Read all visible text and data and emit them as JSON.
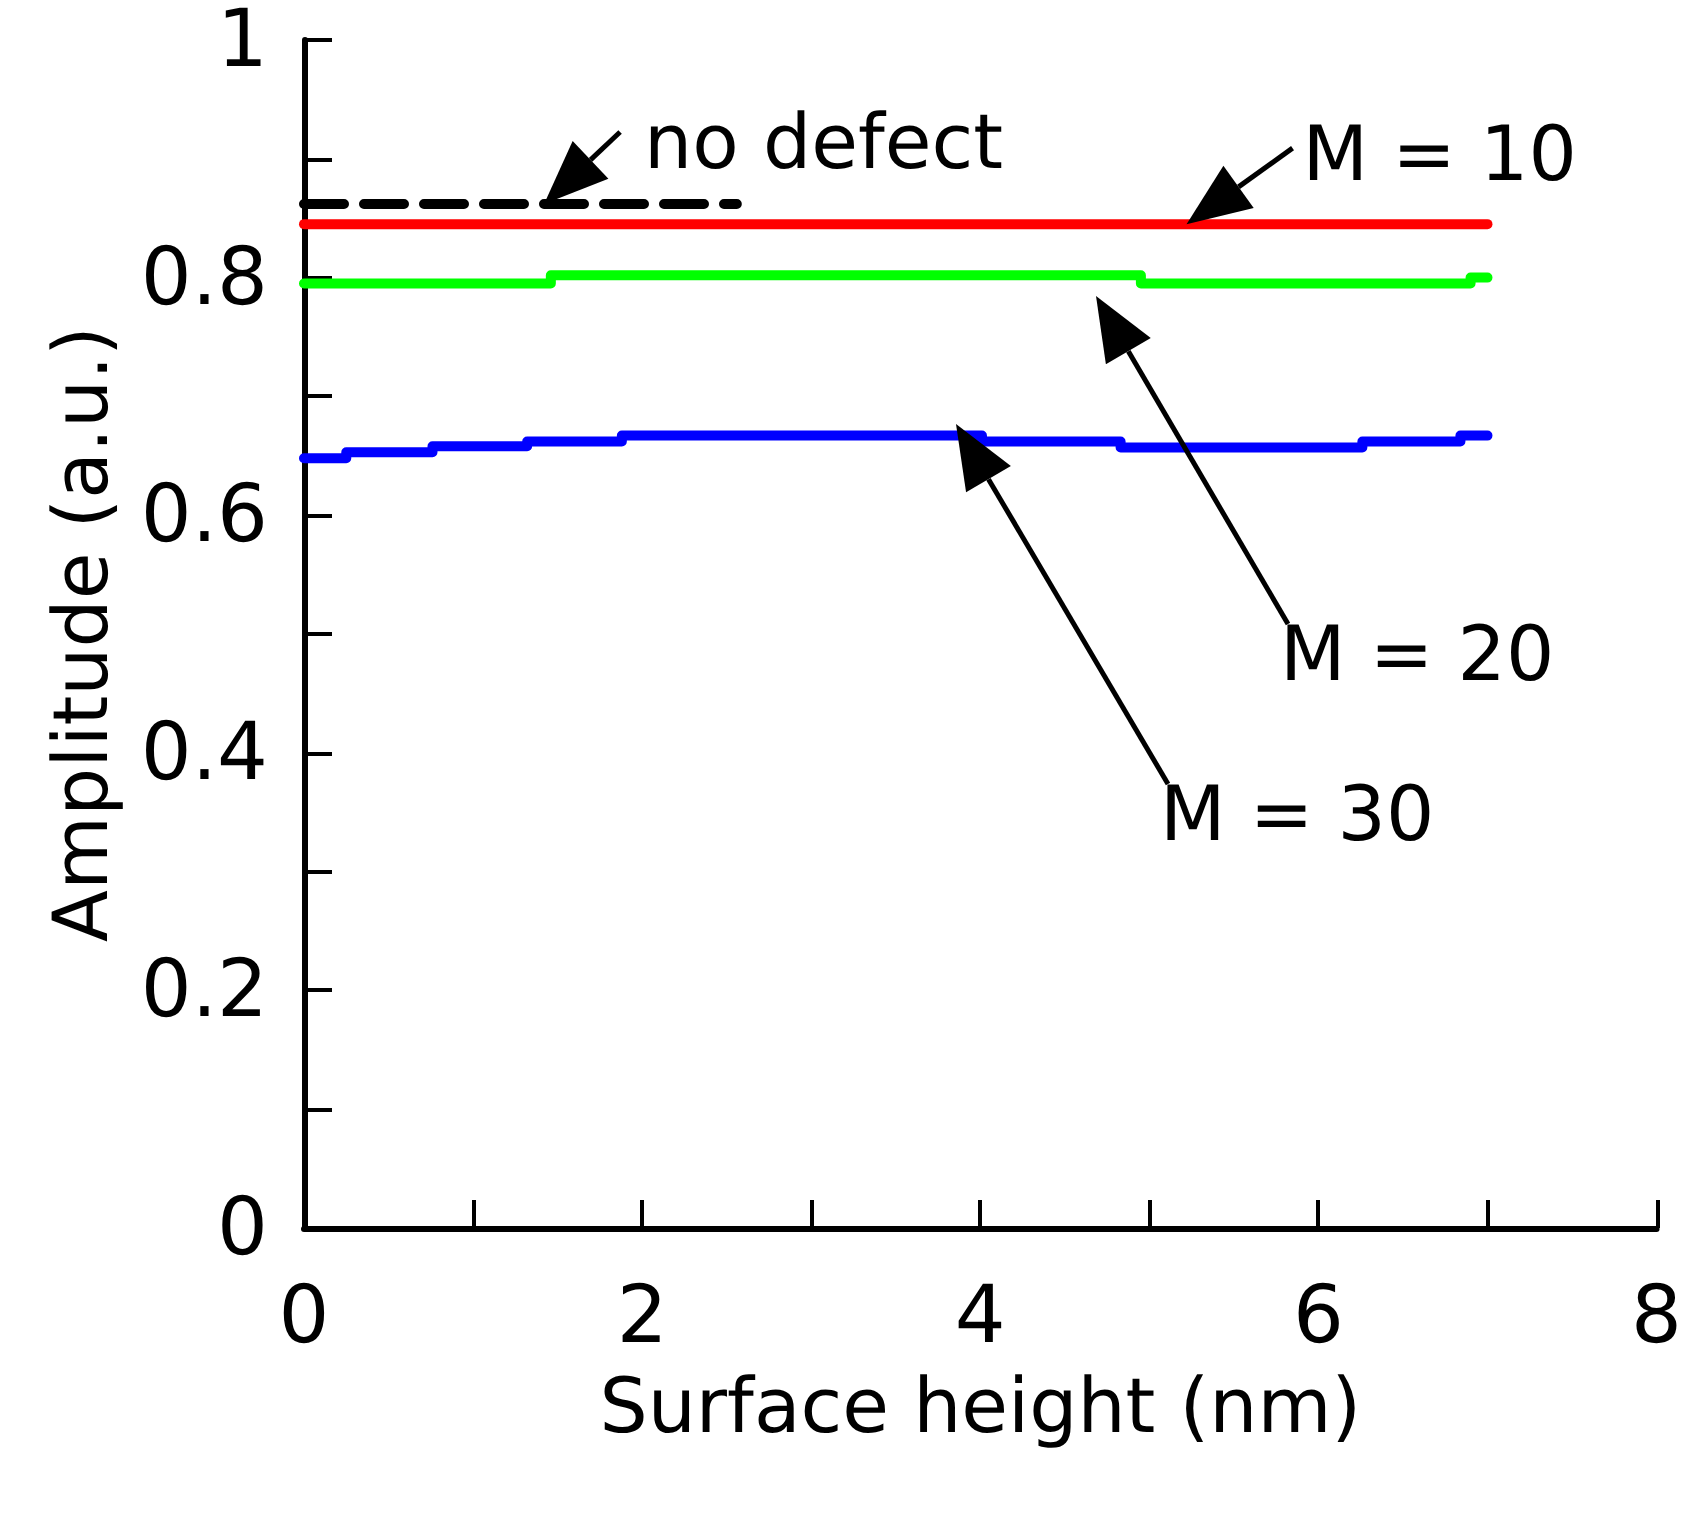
{
  "chart_data": {
    "type": "step",
    "xlabel": "Surface height (nm)",
    "ylabel": "Amplitude (a.u.)",
    "series": [
      {
        "type": "line",
        "color": "#000000",
        "line_style": "dashed",
        "x": [
          0,
          2.56
        ],
        "values": [
          0.862,
          0.862
        ]
      },
      {
        "color": "#ff0000",
        "x": [
          0,
          7
        ],
        "values": [
          0.845,
          0.845
        ]
      },
      {
        "color": "#00ff00",
        "x": [
          0,
          1.46,
          4.95,
          6.9,
          7
        ],
        "values": [
          0.795,
          0.802,
          0.795,
          0.8,
          0.8
        ]
      },
      {
        "color": "#0000ff",
        "x": [
          0,
          0.25,
          0.76,
          1.32,
          1.88,
          4.01,
          4.83,
          6.26,
          6.84,
          7
        ],
        "values": [
          0.648,
          0.653,
          0.658,
          0.662,
          0.667,
          0.662,
          0.657,
          0.662,
          0.667,
          0.667
        ]
      }
    ],
    "xlim": [
      0,
      8
    ],
    "xticks": [
      0,
      {
        "value": 1,
        "label": null
      },
      2,
      {
        "value": 3,
        "label": null
      },
      4,
      {
        "value": 5,
        "label": null
      },
      6,
      {
        "value": 7,
        "label": null
      },
      8
    ],
    "ylim": [
      0,
      1
    ],
    "yticks": [
      0,
      {
        "value": 0.1,
        "label": null
      },
      0.2,
      {
        "value": 0.3,
        "label": null
      },
      0.4,
      {
        "value": 0.5,
        "label": null
      },
      0.6,
      {
        "value": 0.7,
        "label": null
      },
      0.8,
      {
        "value": 0.9,
        "label": null
      },
      1
    ],
    "annotations": [
      {
        "text": "no defect",
        "x": 1.42,
        "y": 0.862
      },
      {
        "text": "M = 10",
        "x": 5.22,
        "y": 0.845
      },
      "M = 20",
      "M = 30"
    ],
    "grid": false,
    "marker": "none",
    "line_style": "solid"
  }
}
